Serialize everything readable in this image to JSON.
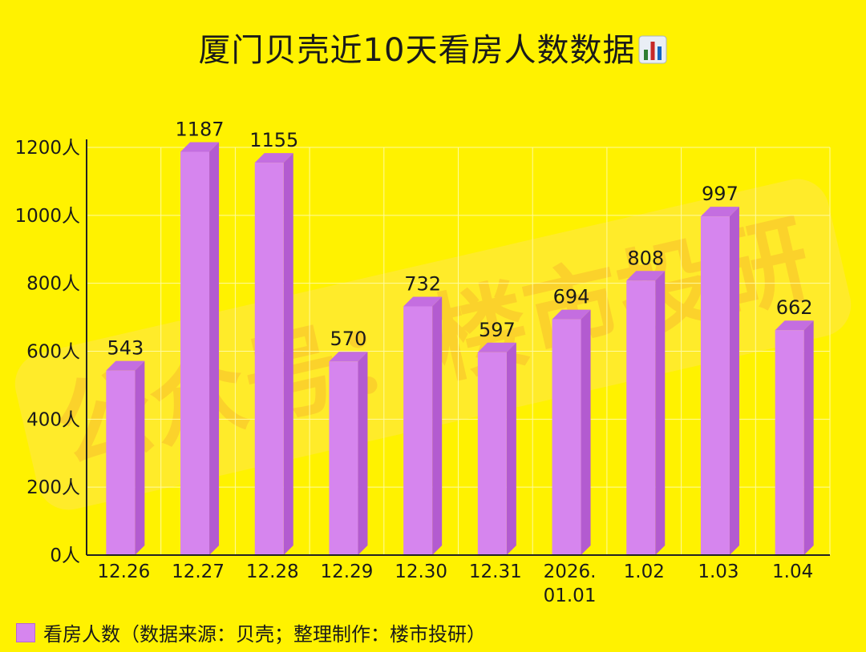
{
  "chart_data": {
    "type": "bar",
    "title": "厦门贝壳近10天看房人数数据",
    "title_icon": "bar-chart-icon",
    "categories": [
      "12.26",
      "12.27",
      "12.28",
      "12.29",
      "12.30",
      "12.31",
      "2026.\n01.01",
      "1.02",
      "1.03",
      "1.04"
    ],
    "values": [
      543,
      1187,
      1155,
      570,
      732,
      597,
      694,
      808,
      997,
      662
    ],
    "ylim": [
      0,
      1200
    ],
    "yticks": [
      "0人",
      "200人",
      "400人",
      "600人",
      "800人",
      "1000人",
      "1200人"
    ],
    "grid": true,
    "legend_position": "bottom-left",
    "series": [
      {
        "name": "看房人数（数据来源：贝壳；整理制作：楼市投研）",
        "color": "#D685EE"
      }
    ]
  },
  "watermark": "公众号：楼市投研",
  "colors": {
    "background": "#FFF200",
    "bar_front": "#D685EE",
    "bar_side": "#B35BD0",
    "bar_top": "#C46EE0",
    "grid": "#FFFBA0",
    "axis": "#222222"
  }
}
